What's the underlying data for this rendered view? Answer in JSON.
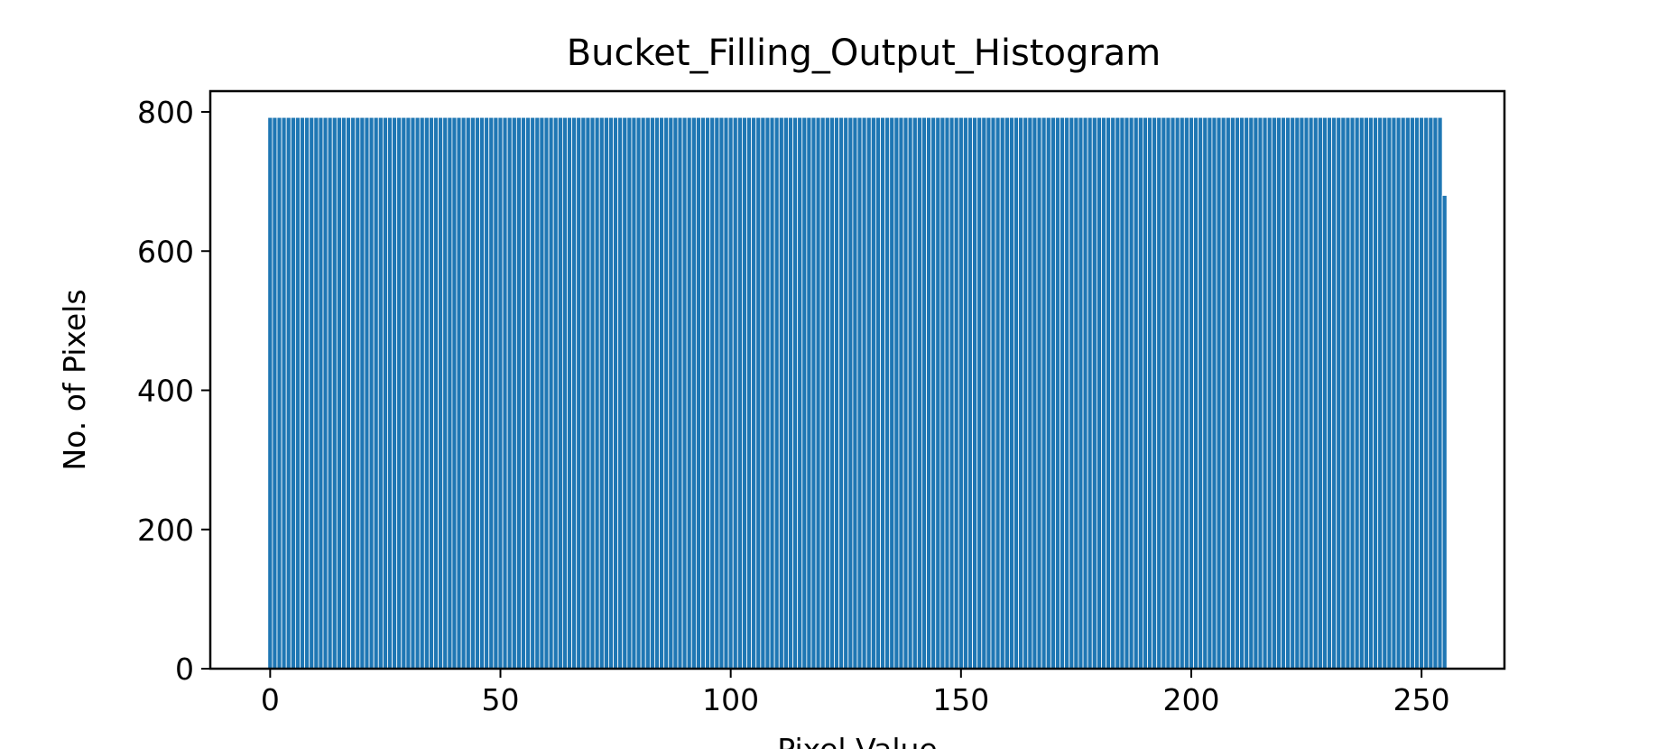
{
  "chart_data": {
    "type": "bar",
    "title": "Bucket_Filling_Output_Histogram",
    "xlabel": "Pixel Value",
    "ylabel": "No. of Pixels",
    "xlim": [
      -13,
      268
    ],
    "ylim": [
      0,
      800
    ],
    "x_ticks": [
      0,
      50,
      100,
      150,
      200,
      250
    ],
    "y_ticks": [
      0,
      200,
      400,
      600,
      800
    ],
    "bar_color": "#1f77b4",
    "bar_edge_color": "#ffffff",
    "grid": false,
    "legend": "none",
    "bins": {
      "x_start": 0,
      "x_end": 255,
      "step": 1,
      "value": 792,
      "last_value": 680
    }
  }
}
